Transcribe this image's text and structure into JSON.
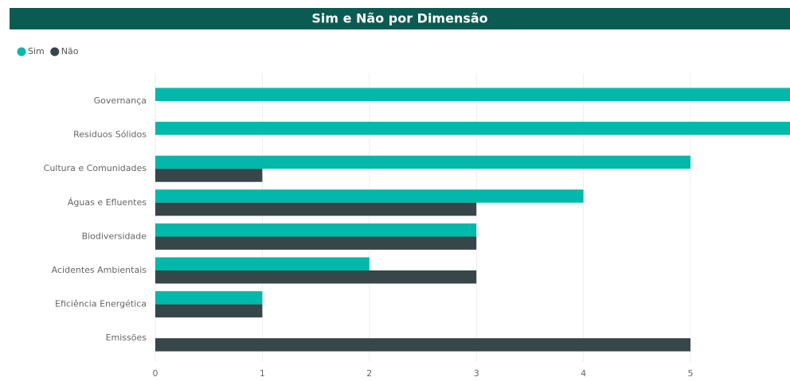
{
  "chart_data": {
    "type": "hbar",
    "title": "Sim e Não por Dimensão",
    "categories": [
      "Governança",
      "Residuos Sólidos",
      "Cultura e Comunidades",
      "Águas e Efluentes",
      "Biodiversidade",
      "Acidentes Ambientais",
      "Eficiência Energética",
      "Emissões"
    ],
    "series": [
      {
        "name": "Sim",
        "color": "#01b8aa",
        "values": [
          6,
          6,
          5,
          4,
          3,
          2,
          1,
          null
        ]
      },
      {
        "name": "Não",
        "color": "#374649",
        "values": [
          null,
          null,
          1,
          3,
          3,
          3,
          1,
          5
        ]
      }
    ],
    "xlim": [
      0,
      6
    ],
    "xticks": [
      0,
      1,
      2,
      3,
      4,
      5
    ],
    "grid": true,
    "legend": "top-left"
  }
}
